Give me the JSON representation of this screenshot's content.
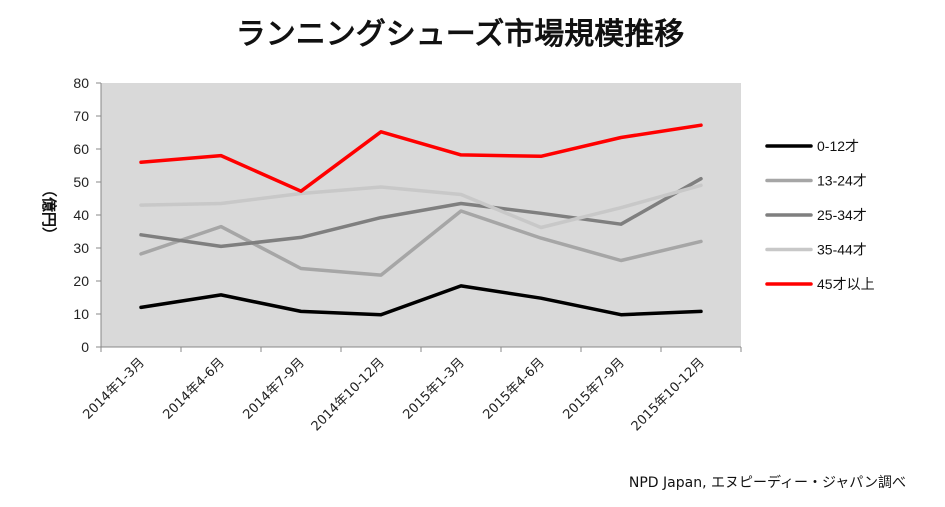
{
  "chart_data": {
    "type": "line",
    "title": "ランニングシューズ市場規模推移",
    "ylabel": "（億円）",
    "xlabel": "",
    "ylim": [
      0,
      80
    ],
    "yticks": [
      "0",
      "10",
      "20",
      "30",
      "40",
      "50",
      "60",
      "70",
      "80"
    ],
    "categories": [
      "2014年1-3月",
      "2014年4-6月",
      "2014年7-9月",
      "2014年10-12月",
      "2015年1-3月",
      "2015年4-6月",
      "2015年7-9月",
      "2015年10-12月"
    ],
    "series": [
      {
        "name": "0-12才",
        "color": "#000000",
        "values": [
          12,
          15.8,
          10.8,
          9.8,
          18.5,
          14.8,
          9.8,
          10.8
        ]
      },
      {
        "name": "13-24才",
        "color": "#a6a6a6",
        "values": [
          28.2,
          36.5,
          23.8,
          21.8,
          41.2,
          33,
          26.2,
          32
        ]
      },
      {
        "name": "25-34才",
        "color": "#7f7f7f",
        "values": [
          34,
          30.5,
          33.2,
          39.2,
          43.5,
          40.5,
          37.2,
          51
        ]
      },
      {
        "name": "35-44才",
        "color": "#c8c8c8",
        "values": [
          43,
          43.5,
          46.5,
          48.5,
          46.2,
          36.2,
          42.2,
          49
        ]
      },
      {
        "name": "45才以上",
        "color": "#ff0000",
        "values": [
          56,
          58,
          47.2,
          65.2,
          58.2,
          57.8,
          63.5,
          67.2
        ]
      }
    ],
    "grid": false,
    "legend_position": "right",
    "plot_background": "#d9d9d9",
    "source": "NPD Japan, エヌピーディー・ジャパン調べ"
  }
}
